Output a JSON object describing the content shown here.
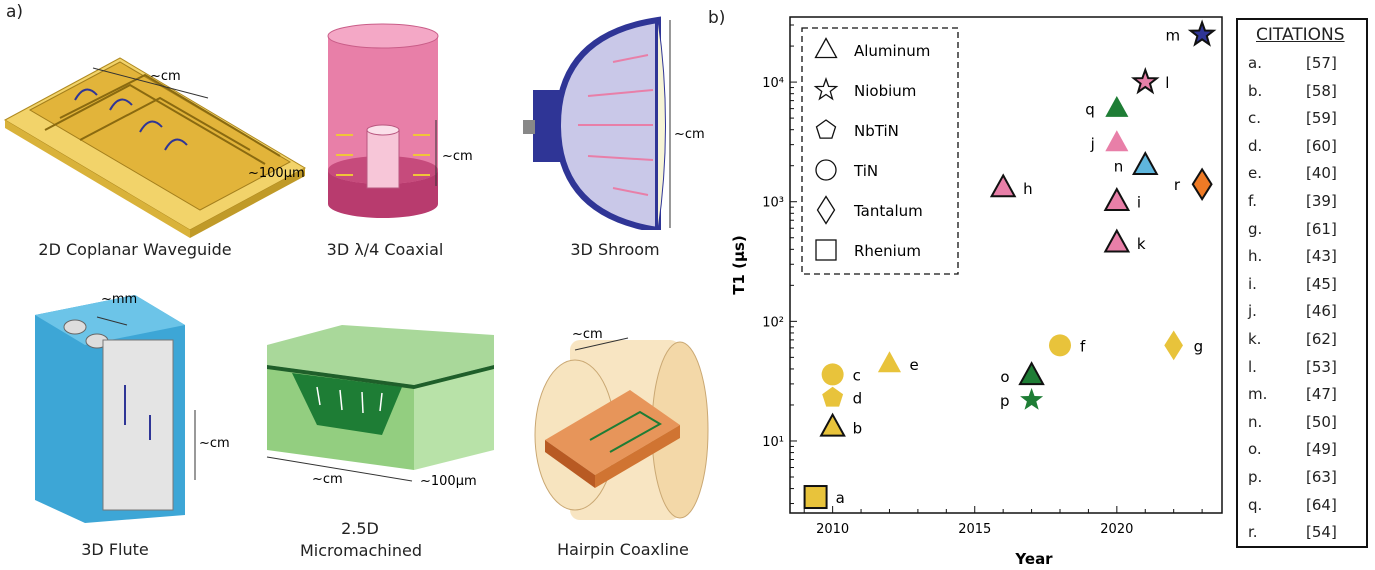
{
  "panel_a": {
    "label": "a)",
    "illustrations": [
      {
        "caption": "2D Coplanar Waveguide",
        "dims": [
          "~cm",
          "~100µm"
        ]
      },
      {
        "caption": "3D  λ/4 Coaxial",
        "dims": [
          "~cm"
        ]
      },
      {
        "caption": "3D Shroom",
        "dims": [
          "~cm"
        ]
      },
      {
        "caption": "3D Flute",
        "dims": [
          "~mm",
          "~cm"
        ]
      },
      {
        "caption_lines": [
          "2.5D",
          "Micromachined"
        ],
        "dims": [
          "~cm",
          "~100µm"
        ]
      },
      {
        "caption": "Hairpin Coaxline",
        "dims": [
          "~cm"
        ]
      }
    ]
  },
  "panel_b": {
    "label": "b)"
  },
  "colors": {
    "aluminum_yellow": "#e8c33b",
    "pink": "#e87fa8",
    "green": "#1e7d35",
    "blue": "#5fb6dd",
    "orange": "#ee7a25",
    "navy": "#2f3596"
  },
  "chart_data": {
    "type": "scatter",
    "xlabel": "Year",
    "ylabel": "T1 (µs)",
    "yscale": "log",
    "xlim": [
      2008.5,
      2023.7
    ],
    "ylim": [
      2.5,
      35000
    ],
    "xticks": [
      2010,
      2015,
      2020
    ],
    "yticks": [
      {
        "value": 10,
        "label": "10¹"
      },
      {
        "value": 100,
        "label": "10²"
      },
      {
        "value": 1000,
        "label": "10³"
      },
      {
        "value": 10000,
        "label": "10⁴"
      }
    ],
    "legend": {
      "position": "top-left",
      "entries": [
        {
          "marker": "triangle",
          "label": "Aluminum"
        },
        {
          "marker": "star",
          "label": "Niobium"
        },
        {
          "marker": "pentagon",
          "label": "NbTiN"
        },
        {
          "marker": "circle",
          "label": "TiN"
        },
        {
          "marker": "diamond",
          "label": "Tantalum"
        },
        {
          "marker": "square",
          "label": "Rhenium"
        }
      ]
    },
    "points": [
      {
        "label": "a",
        "x": 2009.4,
        "y": 3.4,
        "marker": "square",
        "color": "#e8c33b",
        "outline": true
      },
      {
        "label": "b",
        "x": 2010.0,
        "y": 13,
        "marker": "triangle",
        "color": "#e8c33b",
        "outline": true
      },
      {
        "label": "c",
        "x": 2010.0,
        "y": 36,
        "marker": "circle",
        "color": "#e8c33b",
        "outline": false
      },
      {
        "label": "d",
        "x": 2010.0,
        "y": 23,
        "marker": "pentagon",
        "color": "#e8c33b",
        "outline": false
      },
      {
        "label": "e",
        "x": 2012.0,
        "y": 44,
        "marker": "triangle",
        "color": "#e8c33b",
        "outline": false
      },
      {
        "label": "f",
        "x": 2018.0,
        "y": 63,
        "marker": "circle",
        "color": "#e8c33b",
        "outline": false
      },
      {
        "label": "g",
        "x": 2022.0,
        "y": 63,
        "marker": "diamond",
        "color": "#e8c33b",
        "outline": false
      },
      {
        "label": "h",
        "x": 2016.0,
        "y": 1300,
        "marker": "triangle",
        "color": "#e87fa8",
        "outline": true
      },
      {
        "label": "i",
        "x": 2020.0,
        "y": 1000,
        "marker": "triangle",
        "color": "#e87fa8",
        "outline": true
      },
      {
        "label": "j",
        "x": 2020.0,
        "y": 3100,
        "marker": "triangle",
        "color": "#e87fa8",
        "outline": false
      },
      {
        "label": "k",
        "x": 2020.0,
        "y": 450,
        "marker": "triangle",
        "color": "#e87fa8",
        "outline": true
      },
      {
        "label": "l",
        "x": 2021.0,
        "y": 10000,
        "marker": "star",
        "color": "#e87fa8",
        "outline": true
      },
      {
        "label": "m",
        "x": 2023.0,
        "y": 25000,
        "marker": "star",
        "color": "#2f3596",
        "outline": true
      },
      {
        "label": "n",
        "x": 2021.0,
        "y": 2000,
        "marker": "triangle",
        "color": "#5fb6dd",
        "outline": true
      },
      {
        "label": "o",
        "x": 2017.0,
        "y": 35,
        "marker": "triangle",
        "color": "#1e7d35",
        "outline": true
      },
      {
        "label": "p",
        "x": 2017.0,
        "y": 22,
        "marker": "star",
        "color": "#1e7d35",
        "outline": false
      },
      {
        "label": "q",
        "x": 2020.0,
        "y": 6000,
        "marker": "triangle",
        "color": "#1e7d35",
        "outline": false
      },
      {
        "label": "r",
        "x": 2023.0,
        "y": 1400,
        "marker": "diamond",
        "color": "#ee7a25",
        "outline": true
      }
    ]
  },
  "citations": {
    "title": "CITATIONS",
    "rows": [
      {
        "key": "a.",
        "ref": "[57]"
      },
      {
        "key": "b.",
        "ref": "[58]"
      },
      {
        "key": "c.",
        "ref": "[59]"
      },
      {
        "key": "d.",
        "ref": "[60]"
      },
      {
        "key": "e.",
        "ref": "[40]"
      },
      {
        "key": "f.",
        "ref": "[39]"
      },
      {
        "key": "g.",
        "ref": "[61]"
      },
      {
        "key": "h.",
        "ref": "[43]"
      },
      {
        "key": "i.",
        "ref": "[45]"
      },
      {
        "key": "j.",
        "ref": "[46]"
      },
      {
        "key": "k.",
        "ref": "[62]"
      },
      {
        "key": "l.",
        "ref": "[53]"
      },
      {
        "key": "m.",
        "ref": "[47]"
      },
      {
        "key": "n.",
        "ref": "[50]"
      },
      {
        "key": "o.",
        "ref": "[49]"
      },
      {
        "key": "p.",
        "ref": "[63]"
      },
      {
        "key": "q.",
        "ref": "[64]"
      },
      {
        "key": "r.",
        "ref": "[54]"
      }
    ]
  }
}
